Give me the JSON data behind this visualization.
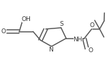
{
  "bg_color": "#ffffff",
  "line_color": "#555555",
  "line_width": 1.1,
  "font_size": 6.5,
  "font_color": "#333333",
  "figsize": [
    1.57,
    0.93
  ],
  "dpi": 100,
  "xlim": [
    0,
    1
  ],
  "ylim": [
    0,
    1
  ]
}
